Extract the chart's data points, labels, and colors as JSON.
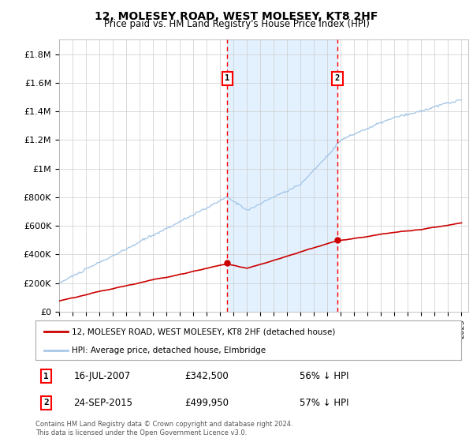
{
  "title": "12, MOLESEY ROAD, WEST MOLESEY, KT8 2HF",
  "subtitle": "Price paid vs. HM Land Registry's House Price Index (HPI)",
  "ylabel_ticks": [
    "£0",
    "£200K",
    "£400K",
    "£600K",
    "£800K",
    "£1M",
    "£1.2M",
    "£1.4M",
    "£1.6M",
    "£1.8M"
  ],
  "ytick_values": [
    0,
    200000,
    400000,
    600000,
    800000,
    1000000,
    1200000,
    1400000,
    1600000,
    1800000
  ],
  "ylim": [
    0,
    1900000
  ],
  "hpi_color": "#a8c8e8",
  "price_color": "#cc0000",
  "sale1_date_year": 2007.54,
  "sale1_price": 342500,
  "sale2_date_year": 2015.73,
  "sale2_price": 499950,
  "legend_label_price": "12, MOLESEY ROAD, WEST MOLESEY, KT8 2HF (detached house)",
  "legend_label_hpi": "HPI: Average price, detached house, Elmbridge",
  "annotation1_date": "16-JUL-2007",
  "annotation1_price": "£342,500",
  "annotation1_hpi": "56% ↓ HPI",
  "annotation2_date": "24-SEP-2015",
  "annotation2_price": "£499,950",
  "annotation2_hpi": "57% ↓ HPI",
  "footnote": "Contains HM Land Registry data © Crown copyright and database right 2024.\nThis data is licensed under the Open Government Licence v3.0.",
  "background_color": "#ffffff",
  "grid_color": "#cccccc",
  "shade_color": "#ddeeff"
}
